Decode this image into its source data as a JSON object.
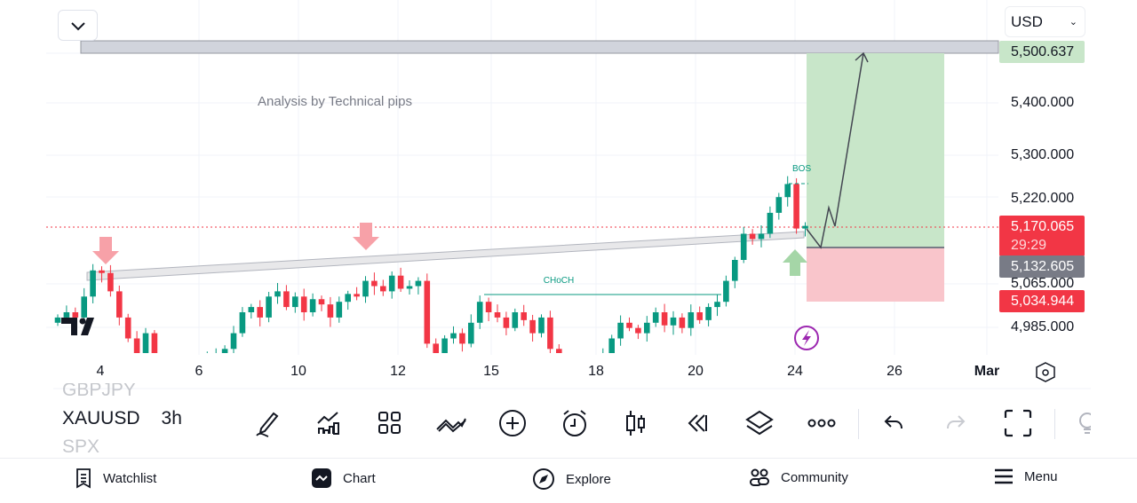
{
  "header": {
    "currency": "USD",
    "collapse_icon": "chevron-down-icon"
  },
  "annotation": {
    "text": "Analysis by Technical pips",
    "choch": "CHoCH",
    "bos": "BOS"
  },
  "price_axis": {
    "labels": [
      "5,400.000",
      "5,300.000",
      "5,220.000",
      "5,065.000",
      "4,985.000"
    ],
    "target": "5,500.637",
    "current": "5,170.065",
    "countdown": "29:29",
    "entry": "5,132.605",
    "stop": "5,034.944"
  },
  "time_axis": {
    "labels": [
      "4",
      "6",
      "10",
      "12",
      "15",
      "18",
      "20",
      "24",
      "26",
      "Mar"
    ]
  },
  "symbols": {
    "prev": "GBPJPY",
    "current": "XAUUSD",
    "interval": "3h",
    "next": "SPX"
  },
  "toolbar": [
    "pencil-icon",
    "indicators-icon",
    "grid-icon",
    "patterns-icon",
    "add-icon",
    "alert-icon",
    "candles-icon",
    "replay-icon",
    "layers-icon",
    "more-icon",
    "undo-icon",
    "redo-icon",
    "fullscreen-icon",
    "idea-icon"
  ],
  "nav": [
    {
      "label": "Watchlist"
    },
    {
      "label": "Chart"
    },
    {
      "label": "Explore"
    },
    {
      "label": "Community"
    },
    {
      "label": "Menu"
    }
  ],
  "colors": {
    "up": "#089981",
    "down": "#f23645",
    "target_zone": "#c8e6c9",
    "stop_zone": "#f9c5cb"
  },
  "chart_data": {
    "type": "candlestick",
    "symbol": "XAUUSD",
    "interval": "3h",
    "closes": [
      4990,
      5000,
      4990,
      5030,
      5080,
      5075,
      5040,
      4990,
      4950,
      4920,
      4960,
      4900,
      4900,
      4890,
      4880,
      4890,
      4900,
      4910,
      4920,
      4930,
      4960,
      5000,
      5010,
      4990,
      5030,
      5040,
      5010,
      5030,
      5000,
      5025,
      5015,
      4990,
      5020,
      5035,
      5030,
      5060,
      5050,
      5040,
      5070,
      5045,
      5050,
      5060,
      4940,
      4900,
      4950,
      4960,
      4940,
      4980,
      5020,
      5000,
      4990,
      4970,
      5000,
      4985,
      4960,
      4990,
      4930,
      4900,
      4880,
      4870,
      4880,
      4900,
      4920,
      4950,
      4980,
      4970,
      4960,
      4980,
      5000,
      4975,
      4990,
      4970,
      5000,
      4985,
      5010,
      5020,
      5060,
      5100,
      5150,
      5140,
      5150,
      5190,
      5220,
      5245,
      5160,
      5165
    ]
  }
}
